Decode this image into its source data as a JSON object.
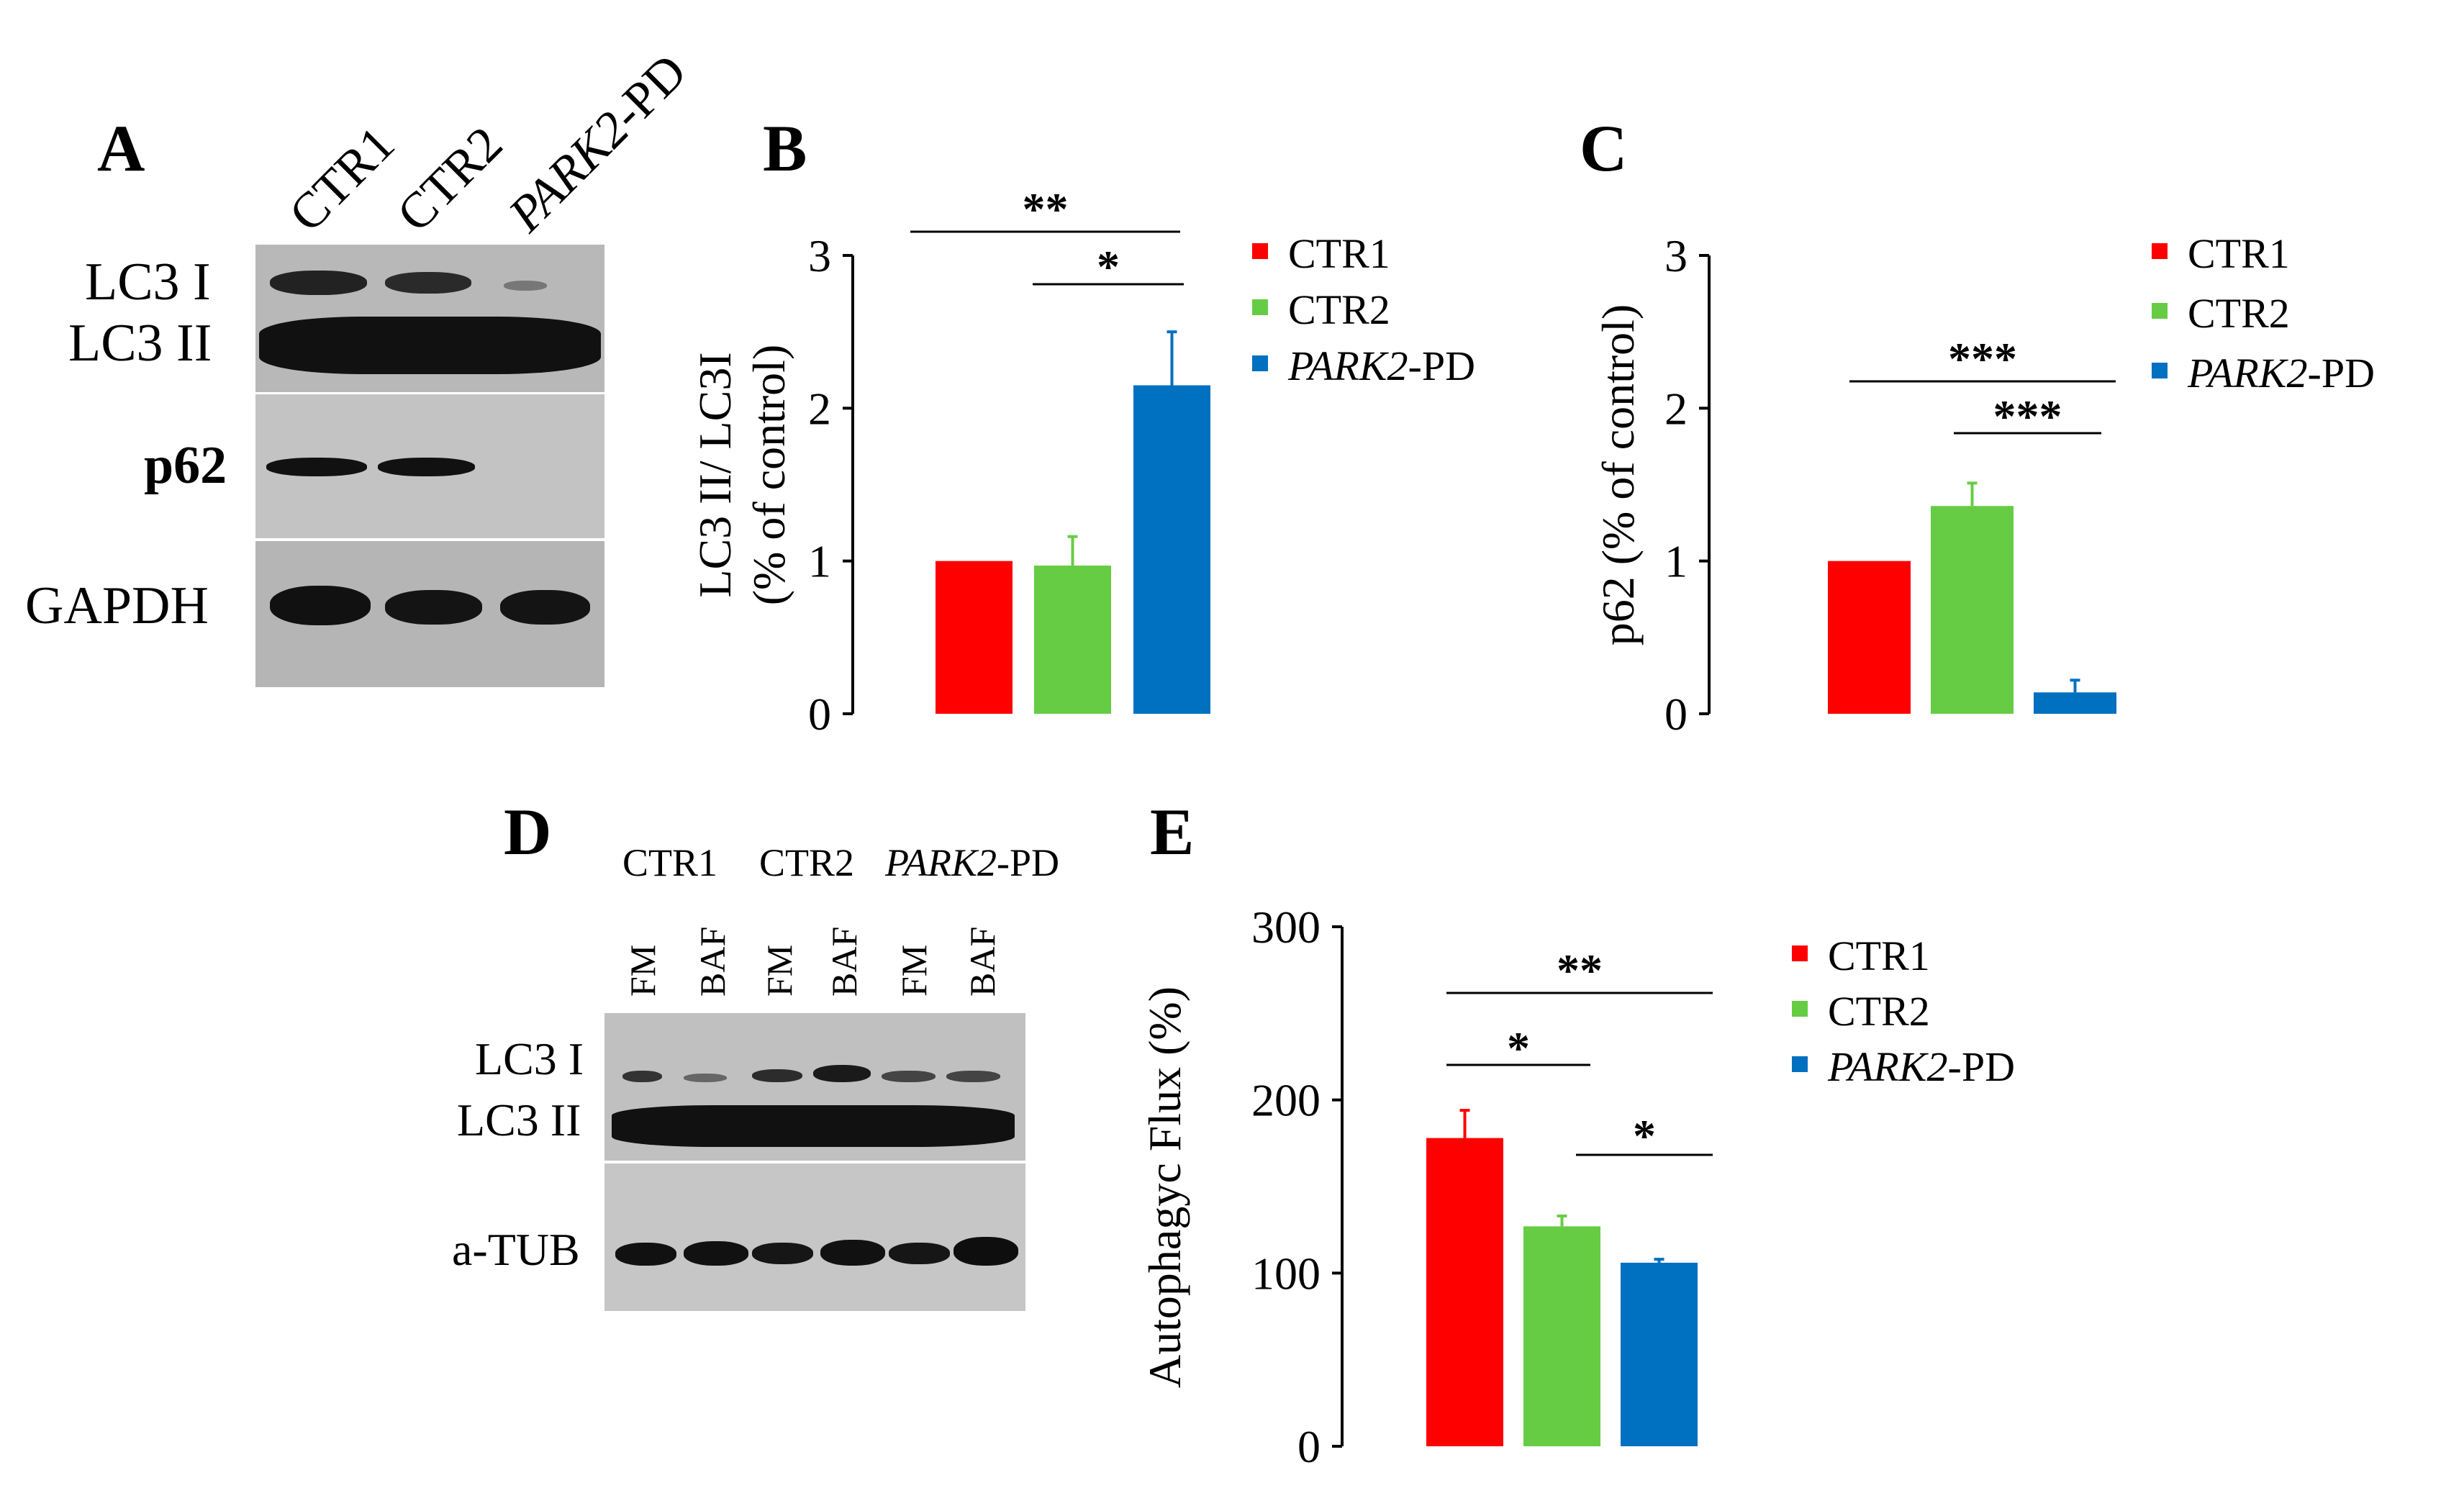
{
  "panels": {
    "A": {
      "letter": "A",
      "lanes": [
        {
          "label": "CTR1",
          "italic": ""
        },
        {
          "label": "CTR2",
          "italic": ""
        },
        {
          "label": "-PD",
          "italic": "PARK2"
        }
      ],
      "rows": {
        "lc3i": "LC3 I",
        "lc3ii": "LC3 II",
        "p62": "p62",
        "gapdh": "GAPDH"
      }
    },
    "D": {
      "letter": "D",
      "groups": [
        {
          "label": "CTR1",
          "italic": ""
        },
        {
          "label": "CTR2",
          "italic": ""
        },
        {
          "label": "-PD",
          "italic": "PARK2"
        }
      ],
      "lanes": [
        "FM",
        "BAF",
        "FM",
        "BAF",
        "FM",
        "BAF"
      ],
      "rows": {
        "lc3i": "LC3 I",
        "lc3ii": "LC3 II",
        "atub": "a-TUB"
      }
    },
    "B": {
      "letter": "B"
    },
    "C": {
      "letter": "C"
    },
    "E": {
      "letter": "E"
    }
  },
  "colors": {
    "CTR1": "#ff0000",
    "CTR2": "#66cc44",
    "PARK2-PD": "#0070c0"
  },
  "chart_data": [
    {
      "panel": "B",
      "type": "bar",
      "categories": [
        "CTR1",
        "CTR2",
        "PARK2-PD"
      ],
      "values": [
        1.0,
        0.97,
        2.15
      ],
      "errors": [
        0,
        0.19,
        0.35
      ],
      "ylabel_line1": "LC3 II/ LC3I",
      "ylabel_line2": "(% of control)",
      "ylim": [
        0,
        3
      ],
      "yticks": [
        "0",
        "1",
        "2",
        "3"
      ],
      "legend": [
        {
          "label": "CTR1",
          "italic": ""
        },
        {
          "label": "CTR2",
          "italic": ""
        },
        {
          "label": "-PD",
          "italic": "PARK2"
        }
      ],
      "significance": [
        {
          "from": 0,
          "to": 2,
          "label": "**"
        },
        {
          "from": 1,
          "to": 2,
          "label": "*"
        }
      ]
    },
    {
      "panel": "C",
      "type": "bar",
      "categories": [
        "CTR1",
        "CTR2",
        "PARK2-PD"
      ],
      "values": [
        1.0,
        1.36,
        0.14
      ],
      "errors": [
        0,
        0.15,
        0.08
      ],
      "ylabel": "p62 (% of control)",
      "ylim": [
        0,
        3
      ],
      "yticks": [
        "0",
        "1",
        "2",
        "3"
      ],
      "legend": [
        {
          "label": "CTR1",
          "italic": ""
        },
        {
          "label": "CTR2",
          "italic": ""
        },
        {
          "label": "-PD",
          "italic": "PARK2"
        }
      ],
      "significance": [
        {
          "from": 0,
          "to": 2,
          "label": "***"
        },
        {
          "from": 1,
          "to": 2,
          "label": "***"
        }
      ]
    },
    {
      "panel": "E",
      "type": "bar",
      "categories": [
        "CTR1",
        "CTR2",
        "PARK2-PD"
      ],
      "values": [
        178,
        127,
        106
      ],
      "errors": [
        16,
        6,
        2
      ],
      "ylabel": "Autophagyc Flux (%)",
      "ylim": [
        0,
        300
      ],
      "yticks": [
        "0",
        "100",
        "200",
        "300"
      ],
      "legend": [
        {
          "label": "CTR1",
          "italic": ""
        },
        {
          "label": "CTR2",
          "italic": ""
        },
        {
          "label": "-PD",
          "italic": "PARK2"
        }
      ],
      "significance": [
        {
          "from": 0,
          "to": 2,
          "label": "**"
        },
        {
          "from": 0,
          "to": 1,
          "label": "*"
        },
        {
          "from": 1,
          "to": 2,
          "label": "*"
        }
      ]
    }
  ]
}
